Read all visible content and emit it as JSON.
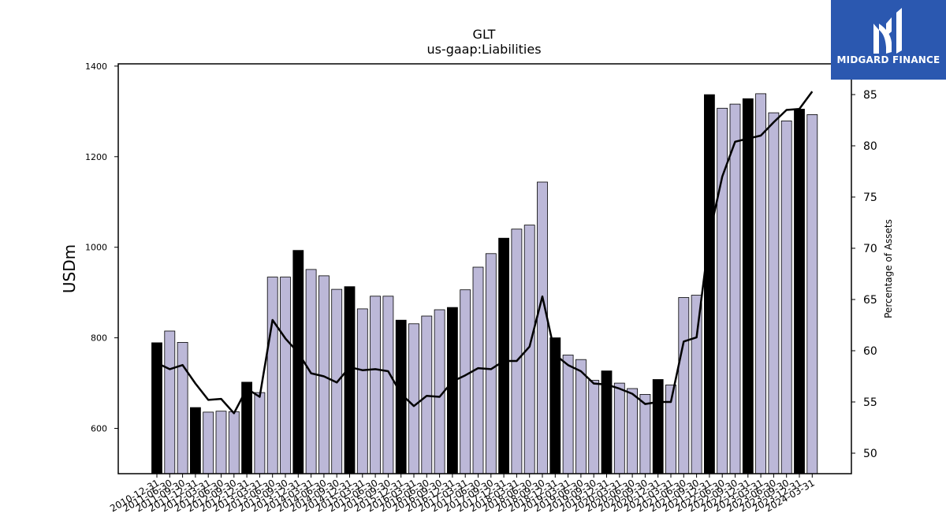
{
  "logo": {
    "text": "MIDGARD FINANCE"
  },
  "chart_data": {
    "type": "bar",
    "title": "GLT",
    "subtitle": "us-gaap:Liabilities",
    "ylabel": "USDm",
    "y2label": "Percentage of Assets",
    "ylim": [
      500,
      1405
    ],
    "y2lim": [
      48,
      88
    ],
    "yticks": [
      600,
      800,
      1000,
      1200,
      1400
    ],
    "y2ticks": [
      50,
      55,
      60,
      65,
      70,
      75,
      80,
      85
    ],
    "grid": false,
    "colors": {
      "bar_annual": "#000000",
      "bar_quarterly": "#bcb8d8",
      "line": "#000000"
    },
    "categories": [
      "2010-12-31",
      "2011-06-30",
      "2011-09-30",
      "2011-12-31",
      "2012-03-31",
      "2012-06-30",
      "2012-09-30",
      "2012-12-31",
      "2013-03-31",
      "2013-06-30",
      "2013-09-30",
      "2013-12-31",
      "2014-03-31",
      "2014-06-30",
      "2014-09-30",
      "2014-12-31",
      "2015-03-31",
      "2015-06-30",
      "2015-09-30",
      "2015-12-31",
      "2016-03-31",
      "2016-06-30",
      "2016-09-30",
      "2016-12-31",
      "2017-03-31",
      "2017-06-30",
      "2017-09-30",
      "2017-12-31",
      "2018-03-31",
      "2018-06-30",
      "2018-09-30",
      "2018-12-31",
      "2019-03-31",
      "2019-06-30",
      "2019-09-30",
      "2019-12-31",
      "2020-03-31",
      "2020-06-30",
      "2020-09-30",
      "2020-12-31",
      "2021-03-31",
      "2021-06-30",
      "2021-09-30",
      "2021-12-31",
      "2022-06-30",
      "2022-09-30",
      "2022-12-31",
      "2023-03-31",
      "2023-06-30",
      "2023-09-30",
      "2023-12-31",
      "2024-03-31"
    ],
    "series": [
      {
        "kind": "bar",
        "values": [
          789,
          815,
          790,
          646,
          636,
          638,
          637,
          702,
          679,
          934,
          934,
          993,
          951,
          937,
          907,
          913,
          864,
          892,
          892,
          839,
          831,
          848,
          862,
          867,
          906,
          956,
          986,
          1020,
          1040,
          1049,
          1144,
          800,
          762,
          752,
          706,
          727,
          700,
          688,
          675,
          708,
          696,
          889,
          894,
          1337,
          1307,
          1316,
          1328,
          1339,
          1297,
          1279,
          1305,
          1293
        ],
        "annual": [
          true,
          false,
          false,
          true,
          false,
          false,
          false,
          true,
          false,
          false,
          false,
          true,
          false,
          false,
          false,
          true,
          false,
          false,
          false,
          true,
          false,
          false,
          false,
          true,
          false,
          false,
          false,
          true,
          false,
          false,
          false,
          true,
          false,
          false,
          false,
          true,
          false,
          false,
          false,
          true,
          false,
          false,
          false,
          true,
          false,
          false,
          true,
          false,
          false,
          false,
          true,
          false
        ]
      },
      {
        "kind": "line",
        "axis": "right",
        "values": [
          58.8,
          58.2,
          58.6,
          56.8,
          55.2,
          55.3,
          53.9,
          56.3,
          55.5,
          63.0,
          61.2,
          59.8,
          57.8,
          57.5,
          56.9,
          58.4,
          58.1,
          58.2,
          58.0,
          55.8,
          54.6,
          55.6,
          55.5,
          57.0,
          57.6,
          58.3,
          58.2,
          59.0,
          59.0,
          60.4,
          65.3,
          59.6,
          58.6,
          58.0,
          56.8,
          56.7,
          56.3,
          55.8,
          54.8,
          55.0,
          55.0,
          60.9,
          61.3,
          71.3,
          77.0,
          80.4,
          80.7,
          81.0,
          82.3,
          83.5,
          83.6,
          85.3
        ]
      }
    ]
  }
}
